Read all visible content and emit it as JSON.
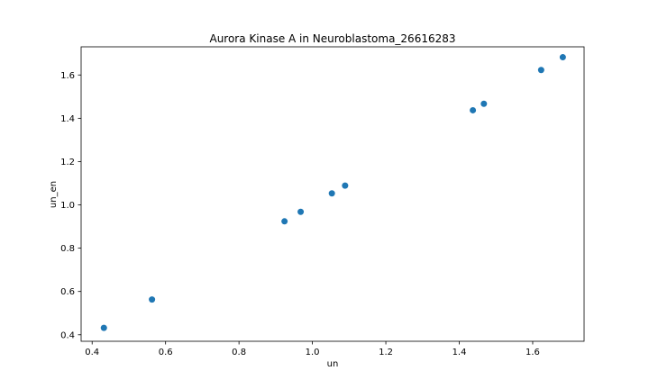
{
  "chart_data": {
    "type": "scatter",
    "title": "Aurora Kinase A in Neuroblastoma_26616283",
    "xlabel": "un",
    "ylabel": "un_en",
    "xlim": [
      0.37,
      1.74
    ],
    "ylim": [
      0.37,
      1.73
    ],
    "xticks": [
      "0.4",
      "0.6",
      "0.8",
      "1.0",
      "1.2",
      "1.4",
      "1.6"
    ],
    "yticks": [
      "0.4",
      "0.6",
      "0.8",
      "1.0",
      "1.2",
      "1.4",
      "1.6"
    ],
    "grid": false,
    "color": "#1f77b4",
    "points": [
      {
        "x": 0.432,
        "y": 0.432
      },
      {
        "x": 0.563,
        "y": 0.563
      },
      {
        "x": 0.924,
        "y": 0.924
      },
      {
        "x": 0.968,
        "y": 0.968
      },
      {
        "x": 1.053,
        "y": 1.053
      },
      {
        "x": 1.089,
        "y": 1.089
      },
      {
        "x": 1.437,
        "y": 1.437
      },
      {
        "x": 1.467,
        "y": 1.467
      },
      {
        "x": 1.623,
        "y": 1.623
      },
      {
        "x": 1.682,
        "y": 1.682
      }
    ]
  }
}
